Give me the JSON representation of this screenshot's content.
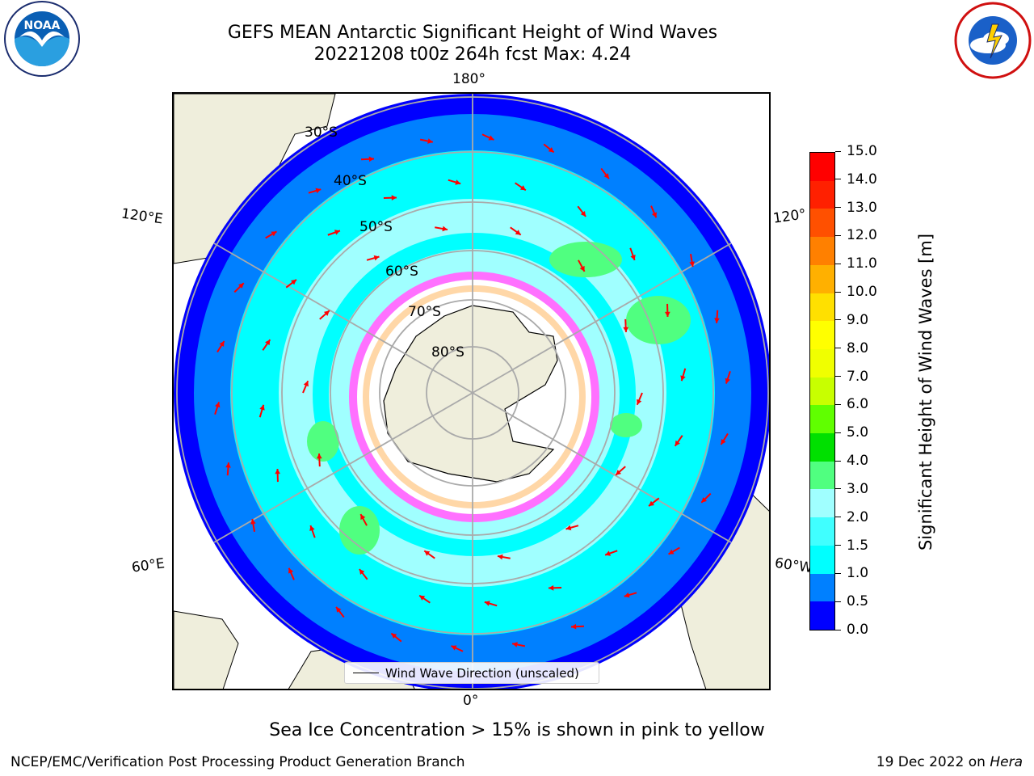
{
  "header": {
    "title_line1": "GEFS MEAN Antarctic Significant Height of Wind Waves",
    "title_line2": "20221208 t00z 264h fcst   Max: 4.24"
  },
  "map": {
    "projection": "south-polar-stereographic",
    "longitude_labels": {
      "top": "180°",
      "bottom": "0°",
      "upper_left": "120°E",
      "upper_right": "120°",
      "lower_left": "60°E",
      "lower_right": "60°W"
    },
    "latitude_labels": [
      "30°S",
      "40°S",
      "50°S",
      "60°S",
      "70°S",
      "80°S"
    ],
    "field": "Significant Height of Wind Waves",
    "max_value": 4.24,
    "overlay": "Sea Ice Concentration > 15%",
    "arrow_color": "#ff0000"
  },
  "legend": {
    "entry": "Wind Wave Direction (unscaled)"
  },
  "colorbar": {
    "label": "Significant Height of Wind Waves [m]",
    "ticks": [
      "0.0",
      "0.5",
      "1.0",
      "1.5",
      "2.0",
      "3.0",
      "4.0",
      "5.0",
      "6.0",
      "7.0",
      "8.0",
      "9.0",
      "10.0",
      "11.0",
      "12.0",
      "13.0",
      "14.0",
      "15.0"
    ],
    "colors": [
      "#0000ff",
      "#0080ff",
      "#00ffff",
      "#40ffff",
      "#a0ffff",
      "#50ff80",
      "#00e000",
      "#60ff00",
      "#c8ff00",
      "#f0ff00",
      "#ffff00",
      "#ffe000",
      "#ffb000",
      "#ff8000",
      "#ff5000",
      "#ff2000",
      "#ff0000"
    ]
  },
  "footnote": "Sea Ice Concentration > 15% is shown in pink to yellow",
  "credits": {
    "left": "NCEP/EMC/Verification Post Processing Product Generation Branch",
    "right_date": "19 Dec 2022 on",
    "right_host": "Hera"
  },
  "logos": {
    "noaa": "NOAA",
    "nws": "NATIONAL WEATHER SERVICE"
  }
}
